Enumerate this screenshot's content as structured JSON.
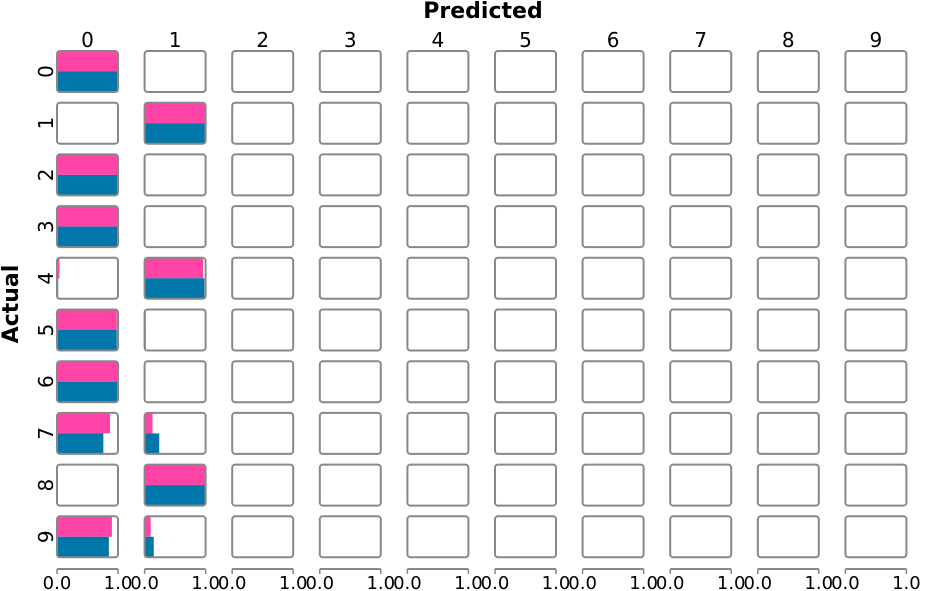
{
  "chart_data": {
    "type": "heatmap",
    "title": "",
    "xlabel": "Predicted",
    "ylabel": "Actual",
    "col_labels": [
      "0",
      "1",
      "2",
      "3",
      "4",
      "5",
      "6",
      "7",
      "8",
      "9"
    ],
    "row_labels": [
      "0",
      "1",
      "2",
      "3",
      "4",
      "5",
      "6",
      "7",
      "8",
      "9"
    ],
    "cell_xlim": [
      0.0,
      1.0
    ],
    "cell_xtick_labels": [
      "0.0",
      "1.0"
    ],
    "series": [
      {
        "color": "#ff44a8",
        "values": [
          [
            1.0,
            0,
            0,
            0,
            0,
            0,
            0,
            0,
            0,
            0
          ],
          [
            0,
            1.0,
            0,
            0,
            0,
            0,
            0,
            0,
            0,
            0
          ],
          [
            1.0,
            0,
            0,
            0,
            0,
            0,
            0,
            0,
            0,
            0
          ],
          [
            0.99,
            0,
            0,
            0,
            0,
            0,
            0,
            0,
            0,
            0
          ],
          [
            0.04,
            0.96,
            0,
            0,
            0,
            0,
            0,
            0,
            0,
            0
          ],
          [
            0.98,
            0.02,
            0,
            0,
            0,
            0,
            0,
            0,
            0,
            0
          ],
          [
            1.0,
            0,
            0,
            0,
            0,
            0,
            0,
            0,
            0,
            0
          ],
          [
            0.87,
            0.13,
            0,
            0,
            0,
            0,
            0,
            0,
            0,
            0
          ],
          [
            0,
            1.0,
            0,
            0,
            0,
            0,
            0,
            0,
            0,
            0
          ],
          [
            0.9,
            0.1,
            0,
            0,
            0,
            0,
            0,
            0,
            0,
            0
          ]
        ]
      },
      {
        "color": "#0077a8",
        "values": [
          [
            1.0,
            0,
            0,
            0,
            0,
            0,
            0,
            0,
            0,
            0
          ],
          [
            0,
            1.0,
            0,
            0,
            0,
            0,
            0,
            0,
            0,
            0
          ],
          [
            1.0,
            0,
            0,
            0,
            0,
            0,
            0,
            0,
            0,
            0
          ],
          [
            0.99,
            0.01,
            0,
            0,
            0,
            0,
            0,
            0,
            0,
            0
          ],
          [
            0.02,
            0.98,
            0,
            0,
            0,
            0,
            0,
            0,
            0,
            0
          ],
          [
            0.98,
            0.02,
            0,
            0,
            0,
            0,
            0,
            0,
            0,
            0
          ],
          [
            1.0,
            0,
            0,
            0,
            0,
            0,
            0,
            0,
            0,
            0
          ],
          [
            0.76,
            0.24,
            0,
            0,
            0,
            0,
            0,
            0,
            0,
            0
          ],
          [
            0,
            1.0,
            0,
            0,
            0,
            0,
            0,
            0,
            0,
            0
          ],
          [
            0.85,
            0.15,
            0,
            0,
            0,
            0,
            0,
            0,
            0,
            0
          ]
        ]
      }
    ],
    "frame_color": "#888888",
    "grid": false
  }
}
